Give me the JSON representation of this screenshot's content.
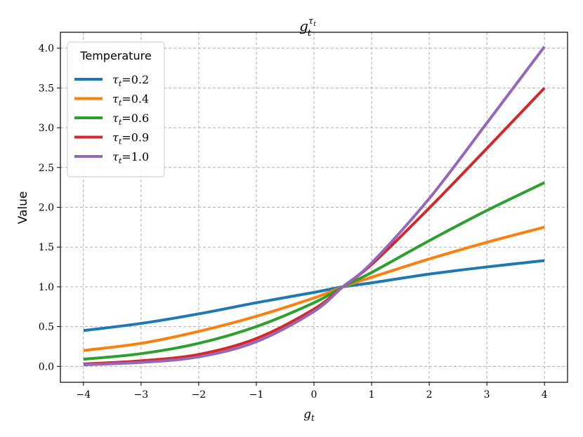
{
  "chart_data": {
    "type": "line",
    "title": "g_t^{τ_t}",
    "title_base": "g",
    "title_sub": "t",
    "title_sup": "τ",
    "title_sup_sub": "t",
    "xlabel": "g_t",
    "xlabel_base": "g",
    "xlabel_sub": "t",
    "ylabel": "Value",
    "xlim": [
      -4.4,
      4.4
    ],
    "ylim": [
      -0.2,
      4.2
    ],
    "xticks": [
      -4,
      -3,
      -2,
      -1,
      0,
      1,
      2,
      3,
      4
    ],
    "xtick_labels": [
      "−4",
      "−3",
      "−2",
      "−1",
      "0",
      "1",
      "2",
      "3",
      "4"
    ],
    "yticks": [
      0.0,
      0.5,
      1.0,
      1.5,
      2.0,
      2.5,
      3.0,
      3.5,
      4.0
    ],
    "ytick_labels": [
      "0.0",
      "0.5",
      "1.0",
      "1.5",
      "2.0",
      "2.5",
      "3.0",
      "3.5",
      "4.0"
    ],
    "grid": true,
    "legend_title": "Temperature",
    "legend_position": "upper-left",
    "x": [
      -4,
      -3,
      -2,
      -1,
      0,
      0.5,
      1,
      2,
      3,
      4
    ],
    "series": [
      {
        "name": "τt=0.2",
        "label_sub": "t",
        "label_value": "=0.2",
        "color": "#1f77b4",
        "values": [
          0.45,
          0.54,
          0.66,
          0.8,
          0.93,
          1.0,
          1.05,
          1.16,
          1.25,
          1.33
        ]
      },
      {
        "name": "τt=0.4",
        "label_sub": "t",
        "label_value": "=0.4",
        "color": "#ff7f0e",
        "values": [
          0.2,
          0.29,
          0.44,
          0.63,
          0.86,
          1.0,
          1.12,
          1.35,
          1.56,
          1.75
        ]
      },
      {
        "name": "τt=0.6",
        "label_sub": "t",
        "label_value": "=0.6",
        "color": "#2ca02c",
        "values": [
          0.09,
          0.16,
          0.29,
          0.5,
          0.8,
          1.0,
          1.18,
          1.58,
          1.96,
          2.31
        ]
      },
      {
        "name": "τt=0.9",
        "label_sub": "t",
        "label_value": "=0.9",
        "color": "#d62728",
        "values": [
          0.03,
          0.07,
          0.15,
          0.35,
          0.72,
          1.0,
          1.28,
          1.99,
          2.74,
          3.5
        ]
      },
      {
        "name": "τt=1.0",
        "label_sub": "t",
        "label_value": "=1.0",
        "color": "#9467bd",
        "values": [
          0.02,
          0.05,
          0.12,
          0.31,
          0.69,
          1.0,
          1.3,
          2.11,
          3.06,
          4.02
        ]
      }
    ]
  }
}
